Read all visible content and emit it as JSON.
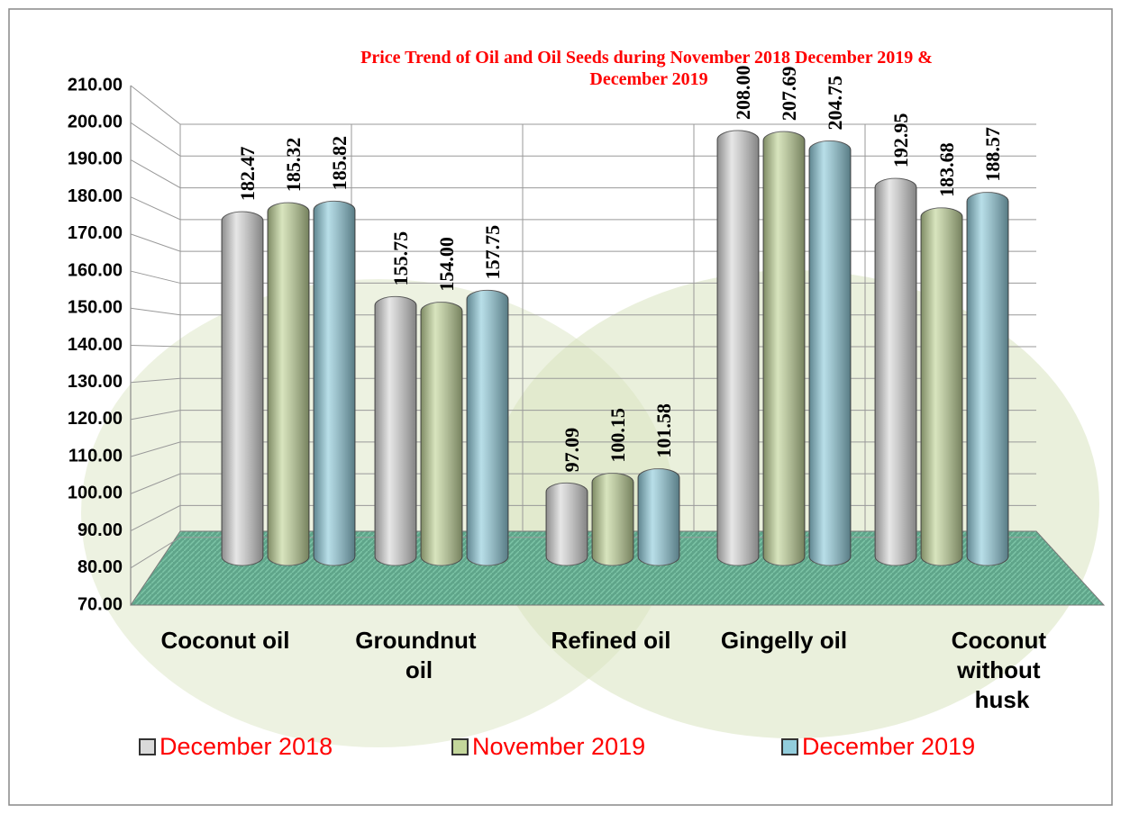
{
  "chart_data": {
    "type": "bar3d",
    "title": "Price Trend of Oil and Oil Seeds during  November  2018  December 2019 & December 2019",
    "categories": [
      "Coconut oil",
      "Groundnut oil",
      "Refined oil",
      "Gingelly oil",
      "Coconut without husk"
    ],
    "series": [
      {
        "name": "December 2018",
        "color": "#d9d9d9",
        "values": [
          182.47,
          155.75,
          97.09,
          208.0,
          192.95
        ],
        "value_labels": [
          "182.47",
          "155.75",
          "97.09",
          "208.00",
          "192.95"
        ]
      },
      {
        "name": "November 2019",
        "color": "#c3d69b",
        "values": [
          185.32,
          154.0,
          100.15,
          207.69,
          183.68
        ],
        "value_labels": [
          "185.32",
          "154.00",
          "100.15",
          "207.69",
          "183.68"
        ]
      },
      {
        "name": "December 2019",
        "color": "#92cddc",
        "values": [
          185.82,
          157.75,
          101.58,
          204.75,
          188.57
        ],
        "value_labels": [
          "185.82",
          "157.75",
          "101.58",
          "204.75",
          "188.57"
        ]
      }
    ],
    "ylim": [
      70,
      210
    ],
    "yticks": [
      {
        "value": 70,
        "label": "70.00"
      },
      {
        "value": 80,
        "label": "80.00"
      },
      {
        "value": 90,
        "label": "90.00"
      },
      {
        "value": 100,
        "label": "100.00"
      },
      {
        "value": 110,
        "label": "110.00"
      },
      {
        "value": 120,
        "label": "120.00"
      },
      {
        "value": 130,
        "label": "130.00"
      },
      {
        "value": 140,
        "label": "140.00"
      },
      {
        "value": 150,
        "label": "150.00"
      },
      {
        "value": 160,
        "label": "160.00"
      },
      {
        "value": 170,
        "label": "170.00"
      },
      {
        "value": 180,
        "label": "180.00"
      },
      {
        "value": 190,
        "label": "190.00"
      },
      {
        "value": 200,
        "label": "200.00"
      },
      {
        "value": 210,
        "label": "210.00"
      }
    ],
    "grid": true,
    "legend": "bottom"
  }
}
